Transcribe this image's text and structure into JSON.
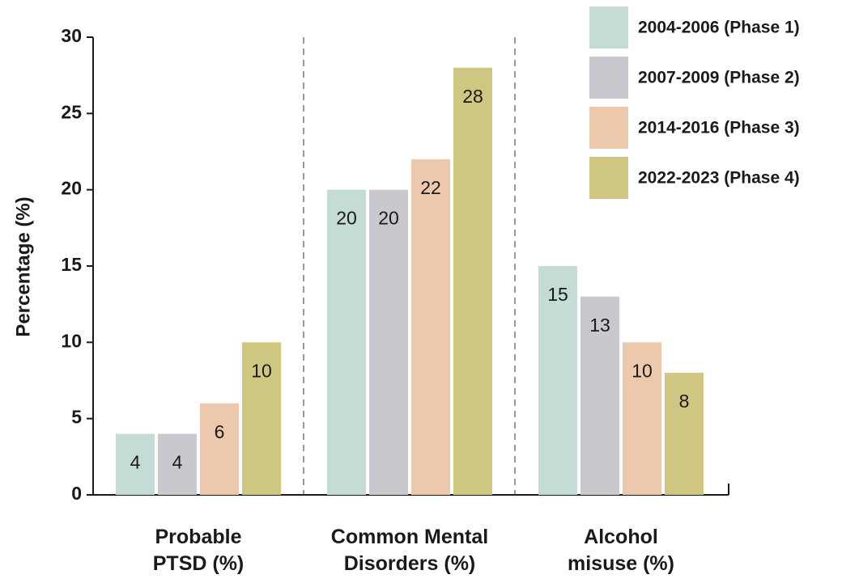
{
  "chart_data": {
    "type": "bar",
    "y_label": "Percentage (%)",
    "categories": [
      "Probable PTSD (%)",
      "Common Mental Disorders (%)",
      "Alcohol misuse (%)"
    ],
    "series": [
      {
        "name": "2004-2006 (Phase 1)",
        "color": "#c5dbd6",
        "values": [
          4,
          20,
          15
        ]
      },
      {
        "name": "2007-2009 (Phase 2)",
        "color": "#c8c8ce",
        "values": [
          4,
          20,
          13
        ]
      },
      {
        "name": "2014-2016 (Phase 3)",
        "color": "#ecc9ad",
        "values": [
          6,
          22,
          10
        ]
      },
      {
        "name": "2022-2023 (Phase 4)",
        "color": "#cfc682",
        "values": [
          10,
          28,
          8
        ]
      }
    ],
    "ylim": [
      0,
      30
    ],
    "yticks": [
      0,
      5,
      10,
      15,
      20,
      25,
      30
    ],
    "legend": "top-right",
    "grid": false
  }
}
